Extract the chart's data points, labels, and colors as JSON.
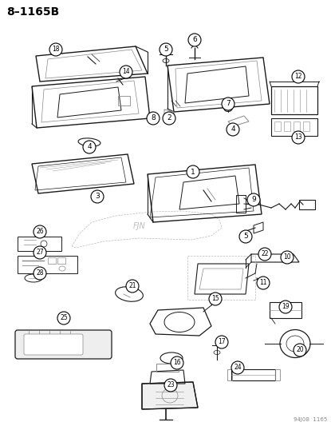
{
  "title": "8–1165B",
  "footer": "94J08  1165",
  "bg_color": "#ffffff",
  "line_color": "#1a1a1a",
  "gray": "#888888",
  "light_gray": "#bbbbbb",
  "fig_w": 4.15,
  "fig_h": 5.33,
  "dpi": 100
}
